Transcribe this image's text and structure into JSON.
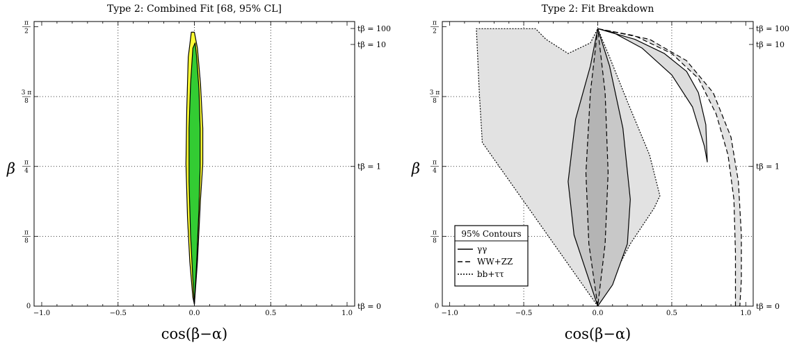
{
  "chart_data": [
    {
      "type": "area",
      "title": "Type 2: Combined Fit  [68, 95% CL]",
      "xlabel": "cos(β−α)",
      "ylabel": "β",
      "xlim": [
        -1.05,
        1.05
      ],
      "ylim": [
        0,
        1.6
      ],
      "x_ticks": [
        {
          "value": -1.0,
          "label": "−1.0"
        },
        {
          "value": -0.5,
          "label": "−0.5"
        },
        {
          "value": 0.0,
          "label": "0.0"
        },
        {
          "value": 0.5,
          "label": "0.5"
        },
        {
          "value": 1.0,
          "label": "1.0"
        }
      ],
      "y_ticks": [
        {
          "value": 0,
          "num": "0",
          "den": ""
        },
        {
          "value": 0.3927,
          "num": "π",
          "den": "8"
        },
        {
          "value": 0.7854,
          "num": "π",
          "den": "4"
        },
        {
          "value": 1.1781,
          "num": "3 π",
          "den": "8"
        },
        {
          "value": 1.5708,
          "num": "π",
          "den": "2"
        }
      ],
      "right_ticks": [
        {
          "value": 0,
          "label": "tβ = 0"
        },
        {
          "value": 0.7854,
          "label": "tβ = 1"
        },
        {
          "value": 1.4711,
          "label": "tβ = 10"
        },
        {
          "value": 1.5608,
          "label": "tβ = 100"
        }
      ],
      "grid": true,
      "series": [
        {
          "name": "95% CL",
          "color": "#ffff33",
          "x": [
            0.0,
            0.02,
            0.04,
            0.055,
            0.055,
            0.04,
            0.02,
            0.0,
            -0.02,
            -0.04,
            -0.05,
            -0.055,
            -0.045,
            -0.03,
            -0.01,
            0.0
          ],
          "y": [
            0.01,
            0.25,
            0.6,
            0.8,
            1.0,
            1.25,
            1.45,
            1.54,
            1.54,
            1.4,
            1.1,
            0.8,
            0.5,
            0.25,
            0.05,
            0.01
          ]
        },
        {
          "name": "68% CL",
          "color": "#33cc33",
          "x": [
            0.0,
            0.015,
            0.03,
            0.038,
            0.038,
            0.03,
            0.015,
            0.005,
            -0.01,
            -0.025,
            -0.035,
            -0.035,
            -0.025,
            -0.01,
            0.0
          ],
          "y": [
            0.01,
            0.25,
            0.55,
            0.78,
            1.0,
            1.22,
            1.4,
            1.48,
            1.45,
            1.25,
            1.0,
            0.7,
            0.4,
            0.15,
            0.01
          ]
        }
      ]
    },
    {
      "type": "area",
      "title": "Type 2: Fit Breakdown",
      "xlabel": "cos(β−α)",
      "ylabel": "β",
      "xlim": [
        -1.05,
        1.05
      ],
      "ylim": [
        0,
        1.6
      ],
      "x_ticks": [
        {
          "value": -1.0,
          "label": "−1.0"
        },
        {
          "value": -0.5,
          "label": "−0.5"
        },
        {
          "value": 0.0,
          "label": "0.0"
        },
        {
          "value": 0.5,
          "label": "0.5"
        },
        {
          "value": 1.0,
          "label": "1.0"
        }
      ],
      "y_ticks": [
        {
          "value": 0,
          "num": "0",
          "den": ""
        },
        {
          "value": 0.3927,
          "num": "π",
          "den": "8"
        },
        {
          "value": 0.7854,
          "num": "π",
          "den": "4"
        },
        {
          "value": 1.1781,
          "num": "3 π",
          "den": "8"
        },
        {
          "value": 1.5708,
          "num": "π",
          "den": "2"
        }
      ],
      "right_ticks": [
        {
          "value": 0,
          "label": "tβ = 0"
        },
        {
          "value": 0.7854,
          "label": "tβ = 1"
        },
        {
          "value": 1.4711,
          "label": "tβ = 10"
        },
        {
          "value": 1.5608,
          "label": "tβ = 100"
        }
      ],
      "grid": true,
      "legend": {
        "title": "95% Contours",
        "position": "bottom-left",
        "entries": [
          {
            "label": "γγ",
            "dash": "solid"
          },
          {
            "label": "WW+ZZ",
            "dash": "dashed"
          },
          {
            "label": "bb+ττ",
            "dash": "dotted"
          }
        ]
      },
      "series": [
        {
          "name": "bb+ττ",
          "color": "#e2e2e2",
          "dash": "dotted",
          "x": [
            0.0,
            -0.78,
            -0.8,
            -0.82,
            -0.42,
            -0.35,
            -0.2,
            -0.05,
            0.0,
            0.08,
            0.2,
            0.35,
            0.42,
            0.38,
            0.22,
            0.0
          ],
          "y": [
            0.0,
            0.92,
            1.2,
            1.56,
            1.56,
            1.5,
            1.42,
            1.48,
            1.56,
            1.4,
            1.15,
            0.85,
            0.62,
            0.55,
            0.35,
            0.0
          ]
        },
        {
          "name": "γγ",
          "color": "#c8c8c8",
          "dash": "solid",
          "x": [
            0.0,
            -0.16,
            -0.2,
            -0.15,
            -0.05,
            0.0,
            0.08,
            0.17,
            0.22,
            0.2,
            0.1,
            0.0
          ],
          "y": [
            0.0,
            0.4,
            0.7,
            1.05,
            1.35,
            1.56,
            1.35,
            1.0,
            0.6,
            0.35,
            0.12,
            0.0
          ]
        },
        {
          "name": "WW+ZZ",
          "color": "#b4b4b4",
          "dash": "dashed",
          "x": [
            0.0,
            -0.06,
            -0.08,
            -0.05,
            0.0,
            0.05,
            0.07,
            0.05,
            0.0
          ],
          "y": [
            0.0,
            0.35,
            0.75,
            1.2,
            1.56,
            1.2,
            0.75,
            0.35,
            0.0
          ]
        },
        {
          "name": "γγ",
          "color": "#dddddd",
          "dash": "solid",
          "x": [
            0.0,
            0.25,
            0.45,
            0.6,
            0.68,
            0.73,
            0.74,
            0.72,
            0.64,
            0.5,
            0.3,
            0.1,
            0.0
          ],
          "y": [
            1.56,
            1.5,
            1.42,
            1.32,
            1.2,
            1.02,
            0.81,
            0.9,
            1.12,
            1.3,
            1.45,
            1.54,
            1.56
          ]
        },
        {
          "name": "WW+ZZ",
          "color": "#e2e2e2",
          "dash": "dashed",
          "x": [
            0.0,
            0.35,
            0.6,
            0.78,
            0.9,
            0.95,
            0.97,
            0.97,
            0.96,
            0.93,
            0.93,
            0.92,
            0.88,
            0.8,
            0.68,
            0.5,
            0.25,
            0.0
          ],
          "y": [
            1.56,
            1.5,
            1.38,
            1.2,
            0.95,
            0.7,
            0.4,
            0.15,
            0.0,
            0.0,
            0.3,
            0.6,
            0.85,
            1.08,
            1.28,
            1.42,
            1.52,
            1.56
          ]
        }
      ]
    }
  ]
}
